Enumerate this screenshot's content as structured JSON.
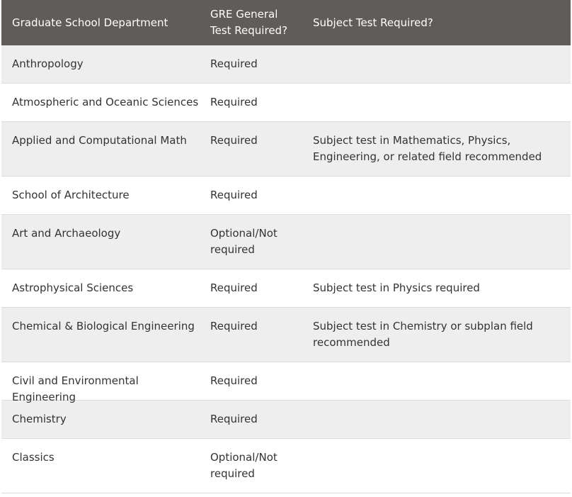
{
  "table": {
    "headers": {
      "department": "Graduate School Department",
      "gre_general": "GRE General Test Required?",
      "subject_test": "Subject Test Required?"
    },
    "rows": [
      {
        "department": "Anthropology",
        "gre_general": "Required",
        "subject_test": ""
      },
      {
        "department": "Atmospheric and Oceanic Sciences",
        "gre_general": "Required",
        "subject_test": ""
      },
      {
        "department": "Applied and Computational Math",
        "gre_general": "Required",
        "subject_test": "Subject test in Mathematics, Physics, Engineering, or related field recommended"
      },
      {
        "department": "School of Architecture",
        "gre_general": "Required",
        "subject_test": ""
      },
      {
        "department": "Art and Archaeology",
        "gre_general": "Optional/Not required",
        "subject_test": ""
      },
      {
        "department": "Astrophysical Sciences",
        "gre_general": "Required",
        "subject_test": "Subject test in Physics required"
      },
      {
        "department": "Chemical & Biological Engineering",
        "gre_general": "Required",
        "subject_test": "Subject test in Chemistry or subplan field recommended"
      },
      {
        "department": "Civil and Environmental Engineering",
        "gre_general": "Required",
        "subject_test": ""
      },
      {
        "department": "Chemistry",
        "gre_general": "Required",
        "subject_test": ""
      },
      {
        "department": "Classics",
        "gre_general": "Optional/Not required",
        "subject_test": ""
      }
    ]
  }
}
